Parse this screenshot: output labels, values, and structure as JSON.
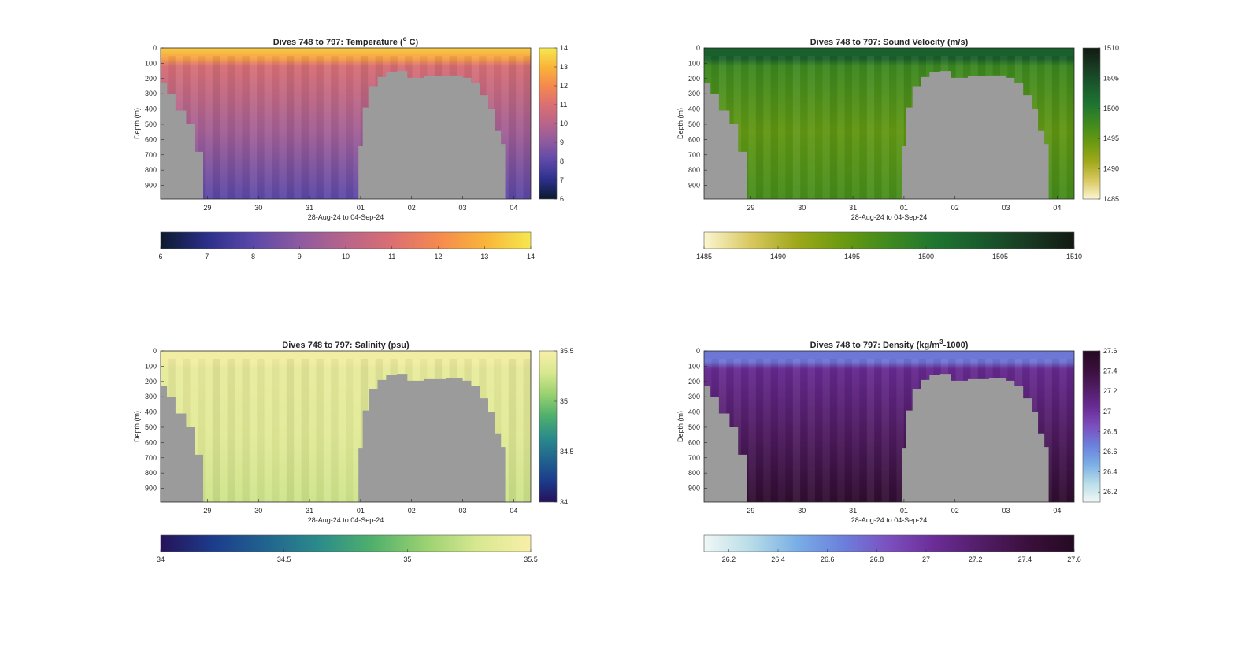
{
  "figure": {
    "panels": [
      {
        "id": "temperature",
        "title_prefix": "Dives 748 to 797: Temperature (",
        "title_sup": "o",
        "title_suffix": " C)",
        "cbar_ticks": [
          "14",
          "13",
          "12",
          "11",
          "10",
          "9",
          "8",
          "7",
          "6"
        ],
        "hbar_ticks": [
          "6",
          "7",
          "8",
          "9",
          "10",
          "11",
          "12",
          "13",
          "14"
        ]
      },
      {
        "id": "sound-velocity",
        "title_prefix": "Dives 748 to 797: Sound Velocity (m/s)",
        "title_sup": "",
        "title_suffix": "",
        "cbar_ticks": [
          "1510",
          "1505",
          "1500",
          "1495",
          "1490",
          "1485"
        ],
        "hbar_ticks": [
          "1485",
          "1490",
          "1495",
          "1500",
          "1505",
          "1510"
        ]
      },
      {
        "id": "salinity",
        "title_prefix": "Dives 748 to 797: Salinity (psu)",
        "title_sup": "",
        "title_suffix": "",
        "cbar_ticks": [
          "35.5",
          "35",
          "34.5",
          "34"
        ],
        "hbar_ticks": [
          "34",
          "34.5",
          "35",
          "35.5"
        ]
      },
      {
        "id": "density",
        "title_prefix": "Dives 748 to 797: Density (kg/m",
        "title_sup": "3",
        "title_suffix": "-1000)",
        "cbar_ticks": [
          "27.6",
          "27.4",
          "27.2",
          "27",
          "26.8",
          "26.6",
          "26.4",
          "26.2"
        ],
        "hbar_ticks": [
          "26.2",
          "26.4",
          "26.6",
          "26.8",
          "27",
          "27.2",
          "27.4",
          "27.6"
        ]
      }
    ],
    "ylabel": "Depth (m)",
    "xlabel": "28-Aug-24 to 04-Sep-24",
    "y_ticks": [
      "0",
      "100",
      "200",
      "300",
      "400",
      "500",
      "600",
      "700",
      "800",
      "900"
    ],
    "x_ticks": [
      "29",
      "30",
      "31",
      "01",
      "02",
      "03",
      "04"
    ]
  },
  "chart_data": [
    {
      "type": "heatmap",
      "title": "Dives 748 to 797: Temperature (° C)",
      "xlabel": "28-Aug-24 to 04-Sep-24",
      "ylabel": "Depth (m)",
      "x_range": [
        "28-Aug-24 02:00",
        "04-Sep-24 08:00"
      ],
      "ylim": [
        0,
        990
      ],
      "y_reversed": true,
      "colorbar": {
        "min": 6,
        "max": 14,
        "colors": [
          "#0c1a2d",
          "#2b2f8a",
          "#5b48a8",
          "#8d5aa0",
          "#b8648a",
          "#db6f72",
          "#f5894f",
          "#f9b43a",
          "#f5e84e"
        ]
      },
      "surface_value": 13.5,
      "layer_0_100m_value": 12.5,
      "deep_value": 9.5,
      "bottom_value": 8.0
    },
    {
      "type": "heatmap",
      "title": "Dives 748 to 797: Sound Velocity (m/s)",
      "xlabel": "28-Aug-24 to 04-Sep-24",
      "ylabel": "Depth (m)",
      "x_range": [
        "28-Aug-24 02:00",
        "04-Sep-24 08:00"
      ],
      "ylim": [
        0,
        990
      ],
      "y_reversed": true,
      "colorbar": {
        "min": 1485,
        "max": 1510,
        "colors": [
          "#fbf6d0",
          "#d9c860",
          "#9fa81a",
          "#6a9a10",
          "#3f8a1e",
          "#1f7530",
          "#195a2c",
          "#183a22",
          "#111a12"
        ]
      },
      "surface_value": 1503,
      "deep_value": 1495,
      "bottom_value": 1497
    },
    {
      "type": "heatmap",
      "title": "Dives 748 to 797: Salinity (psu)",
      "xlabel": "28-Aug-24 to 04-Sep-24",
      "ylabel": "Depth (m)",
      "x_range": [
        "28-Aug-24 02:00",
        "04-Sep-24 08:00"
      ],
      "ylim": [
        0,
        990
      ],
      "y_reversed": true,
      "colorbar": {
        "min": 34,
        "max": 35.5,
        "colors": [
          "#26125a",
          "#1c3c8c",
          "#21648f",
          "#2b8c8a",
          "#4fb06c",
          "#9ad170",
          "#d8e890",
          "#f8efa8"
        ]
      },
      "surface_value": 35.45,
      "deep_value": 35.35,
      "bottom_value": 35.25
    },
    {
      "type": "heatmap",
      "title": "Dives 748 to 797: Density (kg/m³-1000)",
      "xlabel": "28-Aug-24 to 04-Sep-24",
      "ylabel": "Depth (m)",
      "x_range": [
        "28-Aug-24 02:00",
        "04-Sep-24 08:00"
      ],
      "ylim": [
        0,
        990
      ],
      "y_reversed": true,
      "colorbar": {
        "min": 26.1,
        "max": 27.6,
        "colors": [
          "#f0f7f6",
          "#b8dde8",
          "#7aaee6",
          "#6b80dc",
          "#7c4fbf",
          "#6a2c96",
          "#511d66",
          "#3a0f3c",
          "#250a22"
        ]
      },
      "surface_value": 26.7,
      "deep_value": 27.25,
      "bottom_value": 27.5
    }
  ],
  "terrain": {
    "fill": "#9b9b9b",
    "bottom_depth_by_time": [
      {
        "t": "28-Aug-24 02:00",
        "depth_m": 230
      },
      {
        "t": "28-Aug-24 05:00",
        "depth_m": 300
      },
      {
        "t": "28-Aug-24 09:00",
        "depth_m": 410
      },
      {
        "t": "28-Aug-24 14:00",
        "depth_m": 500
      },
      {
        "t": "28-Aug-24 18:00",
        "depth_m": 680
      },
      {
        "t": "28-Aug-24 22:00",
        "depth_m": 990
      },
      {
        "t": "31-Aug-24 22:00",
        "depth_m": 990
      },
      {
        "t": "31-Aug-24 23:00",
        "depth_m": 640
      },
      {
        "t": "01-Sep-24 01:00",
        "depth_m": 390
      },
      {
        "t": "01-Sep-24 04:00",
        "depth_m": 250
      },
      {
        "t": "01-Sep-24 08:00",
        "depth_m": 190
      },
      {
        "t": "01-Sep-24 12:00",
        "depth_m": 160
      },
      {
        "t": "01-Sep-24 17:00",
        "depth_m": 150
      },
      {
        "t": "01-Sep-24 22:00",
        "depth_m": 195
      },
      {
        "t": "02-Sep-24 06:00",
        "depth_m": 185
      },
      {
        "t": "02-Sep-24 16:00",
        "depth_m": 180
      },
      {
        "t": "03-Sep-24 00:00",
        "depth_m": 195
      },
      {
        "t": "03-Sep-24 04:00",
        "depth_m": 230
      },
      {
        "t": "03-Sep-24 08:00",
        "depth_m": 310
      },
      {
        "t": "03-Sep-24 12:00",
        "depth_m": 400
      },
      {
        "t": "03-Sep-24 15:00",
        "depth_m": 540
      },
      {
        "t": "03-Sep-24 18:00",
        "depth_m": 630
      },
      {
        "t": "03-Sep-24 20:00",
        "depth_m": 990
      }
    ]
  }
}
